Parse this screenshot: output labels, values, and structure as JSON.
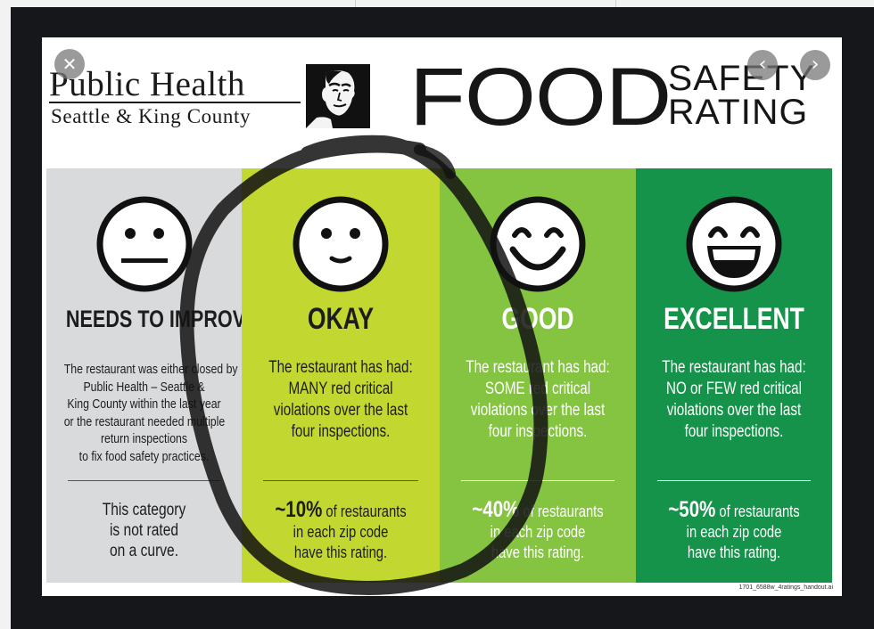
{
  "viewer": {
    "close_glyph": "✕",
    "prev_glyph": "‹",
    "next_glyph": "›"
  },
  "header": {
    "org_name": "Public Health",
    "org_sub": "Seattle & King County",
    "food": "FOOD",
    "safety": "SAFETY",
    "rating": "RATING"
  },
  "colors": {
    "needs_to_improve": "#d9dadc",
    "okay": "#c3d731",
    "good": "#85c441",
    "excellent": "#15934a",
    "circle_marker": "#111111"
  },
  "ratings": [
    {
      "heading": "NEEDS TO IMPROVE",
      "desc": [
        "The restaurant was either closed by",
        "Public Health – Seattle &",
        "King County within the last year",
        "or the restaurant needed multiple",
        "return inspections",
        "to fix food safety practices."
      ],
      "stat_big": "",
      "stat": [
        "This category",
        "is not rated",
        "on a curve."
      ]
    },
    {
      "heading": "OKAY",
      "desc": [
        "The restaurant has had:",
        "MANY red critical",
        "violations over the last",
        "four inspections."
      ],
      "stat_big": "~10%",
      "stat_rest": " of restaurants",
      "stat": [
        "in each zip code",
        "have this rating."
      ]
    },
    {
      "heading": "GOOD",
      "desc": [
        "The restaurant has had:",
        "SOME red critical",
        "violations over the last",
        "four inspections."
      ],
      "stat_big": "~40%",
      "stat_rest": " of restaurants",
      "stat": [
        "in each zip code",
        "have this rating."
      ]
    },
    {
      "heading": "EXCELLENT",
      "desc": [
        "The restaurant has had:",
        "NO or FEW red critical",
        "violations over the last",
        "four inspections."
      ],
      "stat_big": "~50%",
      "stat_rest": " of restaurants",
      "stat": [
        "in each zip code",
        "have this rating."
      ]
    }
  ],
  "footnote": "1701_6588w_4ratings_handout.ai"
}
